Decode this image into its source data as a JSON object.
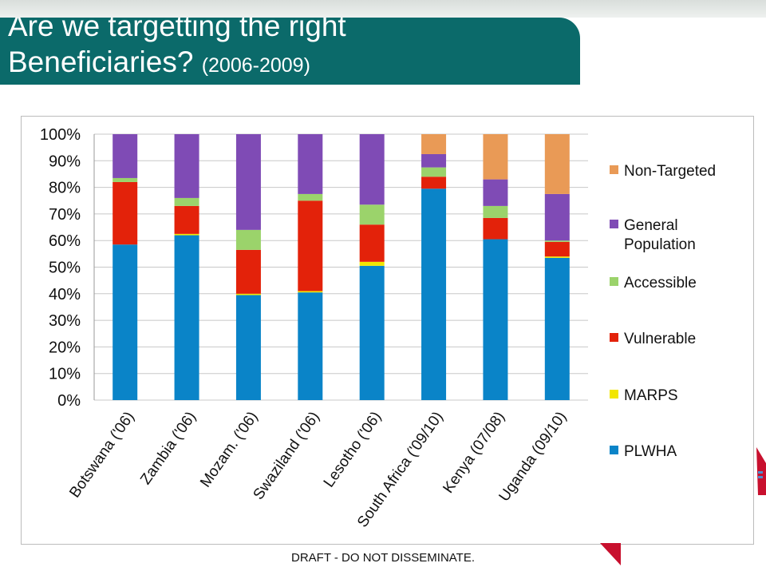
{
  "slide": {
    "title_line1": "Are we targetting the right",
    "title_line2": "Beneficiaries?",
    "title_years": "(2006-2009)",
    "footer": "DRAFT - DO NOT DISSEMINATE."
  },
  "colors": {
    "banner": "#0b6a6a",
    "PLWHA": "#0a84c8",
    "MARPS": "#f2e600",
    "Vulnerable": "#e3220a",
    "Accessible": "#9bd36b",
    "General Population": "#7f4bb5",
    "Non-Targeted": "#e99a56"
  },
  "chart_data": {
    "type": "bar",
    "stacked": true,
    "percent": true,
    "categories": [
      "Botswana ('06)",
      "Zambia ('06)",
      "Mozam. ('06)",
      "Swaziland ('06)",
      "Lesotho ('06)",
      "South Africa ('09/10)",
      "Kenya (07/08)",
      "Uganda (09/10)"
    ],
    "series": [
      {
        "name": "PLWHA",
        "values": [
          58.5,
          62,
          39.5,
          40.5,
          50.5,
          79.5,
          60.5,
          53.5
        ]
      },
      {
        "name": "MARPS",
        "values": [
          0,
          0.5,
          0.5,
          0.5,
          1.5,
          0,
          0,
          0.5
        ]
      },
      {
        "name": "Vulnerable",
        "values": [
          23.5,
          10.5,
          16.5,
          34,
          14,
          4.5,
          8,
          5.5
        ]
      },
      {
        "name": "Accessible",
        "values": [
          1.5,
          3,
          7.5,
          2.5,
          7.5,
          3.5,
          4.5,
          0.5
        ]
      },
      {
        "name": "General Population",
        "values": [
          16.5,
          24,
          36,
          22.5,
          26.5,
          5,
          10,
          17.5
        ]
      },
      {
        "name": "Non-Targeted",
        "values": [
          0,
          0,
          0,
          0,
          0,
          7.5,
          17,
          22.5
        ]
      }
    ],
    "legend_order": [
      "Non-Targeted",
      "General Population",
      "Accessible",
      "Vulnerable",
      "MARPS",
      "PLWHA"
    ],
    "legend_labels": {
      "Non-Targeted": [
        "Non-Targeted"
      ],
      "General Population": [
        "General",
        "Population"
      ],
      "Accessible": [
        "Accessible"
      ],
      "Vulnerable": [
        "Vulnerable"
      ],
      "MARPS": [
        "MARPS"
      ],
      "PLWHA": [
        "PLWHA"
      ]
    },
    "y_ticks": [
      "0%",
      "10%",
      "20%",
      "30%",
      "40%",
      "50%",
      "60%",
      "70%",
      "80%",
      "90%",
      "100%"
    ],
    "ylim": [
      0,
      100
    ],
    "grid": true,
    "legend_position": "right"
  }
}
